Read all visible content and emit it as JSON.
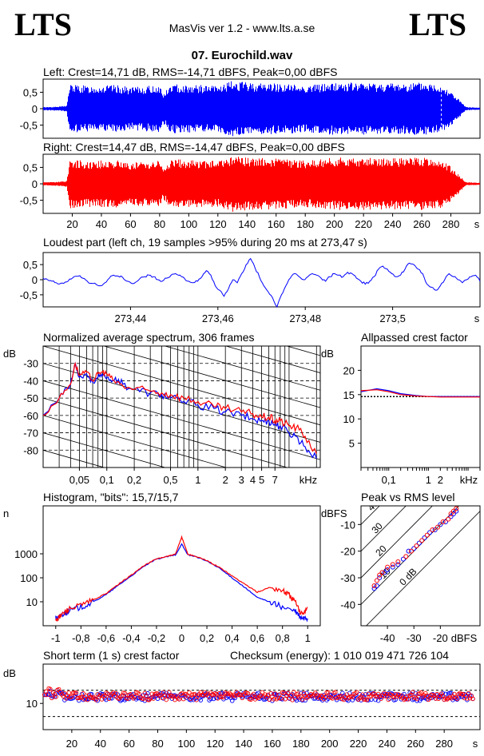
{
  "header": {
    "logo_left": "LTS",
    "logo_right": "LTS",
    "title": "MasVis ver 1.2 - www.lts.a.se",
    "track": "07. Eurochild.wav"
  },
  "colors": {
    "left": "#0000ff",
    "right": "#ff0000",
    "grid": "#000000"
  },
  "chart_data": [
    {
      "id": "left-waveform",
      "type": "area",
      "title": "Left: Crest=14,71 dB, RMS=-14,71 dBFS, Peak=0,00 dBFS",
      "ylim": [
        -0.9,
        0.9
      ],
      "yticks": [
        "0,5",
        "0",
        "-0,5"
      ],
      "xlim": [
        0,
        300
      ],
      "envelope": [
        [
          0,
          0.05
        ],
        [
          10,
          0.06
        ],
        [
          16,
          0.1
        ],
        [
          18,
          0.75
        ],
        [
          30,
          0.7
        ],
        [
          50,
          0.72
        ],
        [
          60,
          0.65
        ],
        [
          80,
          0.72
        ],
        [
          82,
          0.45
        ],
        [
          88,
          0.75
        ],
        [
          120,
          0.7
        ],
        [
          130,
          0.85
        ],
        [
          140,
          0.8
        ],
        [
          160,
          0.78
        ],
        [
          180,
          0.72
        ],
        [
          200,
          0.8
        ],
        [
          240,
          0.78
        ],
        [
          260,
          0.8
        ],
        [
          272,
          0.75
        ],
        [
          278,
          0.6
        ],
        [
          285,
          0.3
        ],
        [
          290,
          0.05
        ],
        [
          300,
          0.03
        ]
      ],
      "series_color": "#0000ff"
    },
    {
      "id": "right-waveform",
      "type": "area",
      "title": "Right: Crest=14,47 dB, RMS=-14,47 dBFS, Peak=0,00 dBFS",
      "ylim": [
        -0.9,
        0.9
      ],
      "yticks": [
        "0,5",
        "0",
        "-0,5"
      ],
      "xlim": [
        0,
        300
      ],
      "xticks": [
        20,
        40,
        60,
        80,
        100,
        120,
        140,
        160,
        180,
        200,
        220,
        240,
        260,
        280
      ],
      "xunit": "s",
      "envelope": [
        [
          0,
          0.05
        ],
        [
          10,
          0.06
        ],
        [
          16,
          0.1
        ],
        [
          18,
          0.75
        ],
        [
          30,
          0.7
        ],
        [
          50,
          0.72
        ],
        [
          60,
          0.65
        ],
        [
          80,
          0.72
        ],
        [
          82,
          0.45
        ],
        [
          88,
          0.75
        ],
        [
          120,
          0.7
        ],
        [
          130,
          0.85
        ],
        [
          140,
          0.8
        ],
        [
          160,
          0.78
        ],
        [
          180,
          0.72
        ],
        [
          200,
          0.8
        ],
        [
          240,
          0.78
        ],
        [
          260,
          0.8
        ],
        [
          272,
          0.75
        ],
        [
          278,
          0.6
        ],
        [
          285,
          0.3
        ],
        [
          290,
          0.05
        ],
        [
          300,
          0.03
        ]
      ],
      "series_color": "#ff0000"
    },
    {
      "id": "loudest-part",
      "type": "line",
      "title": "Loudest part (left  ch, 19 samples >95% during 20 ms at 273,47 s)",
      "ylim": [
        -0.9,
        0.9
      ],
      "yticks": [
        "0,5",
        "0",
        "-0,5"
      ],
      "xlim": [
        273.42,
        273.52
      ],
      "xticks": [
        "273,44",
        "273,46",
        "273,48",
        "273,5"
      ],
      "xtick_values": [
        273.44,
        273.46,
        273.48,
        273.5
      ],
      "xunit": "s",
      "y": [
        0.05,
        0.0,
        -0.05,
        -0.1,
        -0.12,
        -0.08,
        0.02,
        0.1,
        0.12,
        0.05,
        -0.05,
        -0.12,
        -0.15,
        -0.2,
        -0.1,
        0.05,
        0.15,
        0.12,
        0.08,
        -0.05,
        -0.12,
        -0.08,
        0.05,
        0.1,
        0.15,
        0.1,
        0.0,
        -0.05,
        0.05,
        0.15,
        0.2,
        0.15,
        0.05,
        -0.05,
        -0.1,
        -0.05,
        0.1,
        0.3,
        0.15,
        -0.2,
        -0.35,
        -0.55,
        -0.3,
        0.0,
        -0.1,
        0.2,
        0.5,
        0.7,
        0.4,
        0.1,
        -0.2,
        -0.4,
        -0.6,
        -0.9,
        -0.5,
        -0.2,
        0.05,
        0.2,
        0.1,
        0.0,
        0.1,
        0.2,
        0.15,
        0.05,
        -0.05,
        0.1,
        0.2,
        0.15,
        0.1,
        0.25,
        0.2,
        0.05,
        -0.05,
        -0.15,
        -0.05,
        0.1,
        0.35,
        0.45,
        0.35,
        0.2,
        0.1,
        0.15,
        0.35,
        0.55,
        0.5,
        0.35,
        0.2,
        -0.15,
        -0.25,
        -0.35,
        -0.2,
        0.0,
        0.2,
        0.1,
        0.0,
        -0.1,
        0.0,
        0.1,
        0.15,
        -0.05
      ],
      "series_color": "#0000ff"
    },
    {
      "id": "spectrum",
      "type": "line",
      "title": "Normalized average spectrum, 306 frames",
      "ylabel": "dB",
      "xunit": "kHz",
      "ylim": [
        -90,
        -20
      ],
      "yticks": [
        -30,
        -40,
        -50,
        -60,
        -70,
        -80
      ],
      "xlim": [
        0.02,
        22
      ],
      "xtick_labels": [
        "0,05",
        "0,1",
        "0,2",
        "0,5",
        "1",
        "2",
        "3",
        "4",
        "5",
        "7"
      ],
      "xtick_values": [
        0.05,
        0.1,
        0.2,
        0.5,
        1,
        2,
        3,
        4,
        5,
        7
      ],
      "series": [
        {
          "name": "",
          "color": "#0000ff",
          "x": [
            0.02,
            0.03,
            0.04,
            0.045,
            0.05,
            0.06,
            0.07,
            0.08,
            0.09,
            0.1,
            0.12,
            0.15,
            0.2,
            0.3,
            0.4,
            0.5,
            0.7,
            1,
            1.5,
            2,
            3,
            4,
            5,
            6,
            7,
            8,
            10,
            12,
            15,
            20
          ],
          "y": [
            -60,
            -50,
            -42,
            -30,
            -38,
            -36,
            -41,
            -38,
            -37,
            -38,
            -40,
            -42,
            -45,
            -47,
            -48,
            -50,
            -52,
            -54,
            -56,
            -58,
            -60,
            -62,
            -63,
            -63,
            -65,
            -66,
            -70,
            -72,
            -78,
            -85
          ]
        },
        {
          "name": "",
          "color": "#ff0000",
          "x": [
            0.02,
            0.03,
            0.04,
            0.045,
            0.05,
            0.06,
            0.07,
            0.08,
            0.09,
            0.1,
            0.12,
            0.15,
            0.2,
            0.3,
            0.4,
            0.5,
            0.7,
            1,
            1.5,
            2,
            3,
            4,
            5,
            6,
            7,
            8,
            10,
            12,
            15,
            20
          ],
          "y": [
            -60,
            -50,
            -42,
            -30,
            -37,
            -35,
            -40,
            -36,
            -35,
            -36,
            -40,
            -43,
            -45,
            -46,
            -47,
            -48,
            -50,
            -52,
            -55,
            -56,
            -58,
            -59,
            -61,
            -61,
            -63,
            -63,
            -66,
            -67,
            -72,
            -82
          ]
        }
      ]
    },
    {
      "id": "allpassed-crest",
      "type": "line",
      "title": "Allpassed crest factor",
      "ylabel": "dB",
      "xunit": "kHz",
      "ylim": [
        0,
        25
      ],
      "yticks": [
        5,
        10,
        15,
        20
      ],
      "xlim": [
        0.02,
        20
      ],
      "xtick_labels": [
        "0,1",
        "1",
        "2"
      ],
      "xtick_values": [
        0.1,
        1,
        2
      ],
      "reference": 14.6,
      "series": [
        {
          "name": "",
          "color": "#0000ff",
          "x": [
            0.02,
            0.05,
            0.1,
            0.2,
            0.5,
            1,
            2,
            5,
            10,
            20
          ],
          "y": [
            15.6,
            16.2,
            15.8,
            15.2,
            14.8,
            14.6,
            14.6,
            14.6,
            14.6,
            14.6
          ]
        },
        {
          "name": "",
          "color": "#ff0000",
          "x": [
            0.02,
            0.05,
            0.1,
            0.2,
            0.5,
            1,
            2,
            5,
            10,
            20
          ],
          "y": [
            15.8,
            16.0,
            15.6,
            15.0,
            14.7,
            14.6,
            14.5,
            14.5,
            14.5,
            14.5
          ]
        }
      ]
    },
    {
      "id": "histogram",
      "type": "line",
      "title": "Histogram, \"bits\": 15,7/15,7",
      "ylabel": "n",
      "ylim": [
        1,
        100000
      ],
      "yticks": [
        10,
        100,
        1000
      ],
      "xlim": [
        -1.1,
        1.1
      ],
      "xtick_values": [
        -1,
        -0.8,
        -0.6,
        -0.4,
        -0.2,
        0,
        0.2,
        0.4,
        0.6,
        0.8,
        1
      ],
      "xtick_labels": [
        "-1",
        "-0,8",
        "-0,6",
        "-0,4",
        "-0,2",
        "0",
        "0,2",
        "0,4",
        "0,6",
        "0,8",
        "1"
      ],
      "series": [
        {
          "name": "",
          "color": "#0000ff",
          "x": [
            -1,
            -0.98,
            -0.95,
            -0.9,
            -0.8,
            -0.7,
            -0.6,
            -0.5,
            -0.4,
            -0.3,
            -0.2,
            -0.1,
            -0.05,
            0,
            0.05,
            0.1,
            0.2,
            0.3,
            0.4,
            0.5,
            0.6,
            0.7,
            0.8,
            0.9,
            0.95,
            1
          ],
          "y": [
            2,
            2,
            3,
            4,
            6,
            10,
            20,
            50,
            120,
            300,
            600,
            800,
            900,
            2500,
            900,
            800,
            500,
            250,
            100,
            40,
            15,
            10,
            6,
            4,
            2,
            2
          ]
        },
        {
          "name": "",
          "color": "#ff0000",
          "x": [
            -1,
            -0.98,
            -0.95,
            -0.9,
            -0.8,
            -0.7,
            -0.6,
            -0.5,
            -0.4,
            -0.3,
            -0.2,
            -0.1,
            -0.05,
            0,
            0.05,
            0.1,
            0.2,
            0.3,
            0.4,
            0.5,
            0.6,
            0.7,
            0.8,
            0.85,
            0.9,
            0.95,
            1
          ],
          "y": [
            2,
            2,
            3,
            5,
            7,
            12,
            22,
            55,
            130,
            320,
            620,
            820,
            950,
            5000,
            950,
            820,
            520,
            270,
            120,
            55,
            25,
            40,
            30,
            20,
            10,
            3,
            6
          ]
        }
      ]
    },
    {
      "id": "peak-vs-rms",
      "type": "scatter",
      "title": "Peak vs RMS level",
      "ylabel": "dBFS",
      "xunit": "dBFS",
      "xlim": [
        -50,
        -5
      ],
      "ylim": [
        -48,
        -3
      ],
      "xticks": [
        -40,
        -30,
        -20
      ],
      "yticks": [
        -10,
        -20,
        -30,
        -40
      ],
      "crest_lines": [
        0,
        10,
        20,
        30,
        40
      ],
      "crest_labels": [
        "0 dB",
        "10",
        "20",
        "30",
        "40"
      ],
      "series": [
        {
          "name": "",
          "color": "#0000ff",
          "points": [
            [
              -45,
              -34
            ],
            [
              -44,
              -33
            ],
            [
              -43,
              -30
            ],
            [
              -41,
              -28
            ],
            [
              -40,
              -27
            ],
            [
              -38,
              -26
            ],
            [
              -36,
              -25
            ],
            [
              -34,
              -23
            ],
            [
              -32,
              -20
            ],
            [
              -30,
              -19
            ],
            [
              -28,
              -17
            ],
            [
              -26,
              -15
            ],
            [
              -24,
              -13
            ],
            [
              -22,
              -12
            ],
            [
              -20,
              -10
            ],
            [
              -18,
              -9
            ],
            [
              -16,
              -7
            ],
            [
              -15,
              -6
            ],
            [
              -14,
              -5
            ]
          ]
        },
        {
          "name": "",
          "color": "#ff0000",
          "points": [
            [
              -45,
              -33
            ],
            [
              -44,
              -31
            ],
            [
              -43,
              -29
            ],
            [
              -42,
              -28
            ],
            [
              -40,
              -26
            ],
            [
              -38,
              -25
            ],
            [
              -36,
              -24
            ],
            [
              -33,
              -22
            ],
            [
              -31,
              -20
            ],
            [
              -29,
              -18
            ],
            [
              -27,
              -16
            ],
            [
              -25,
              -14
            ],
            [
              -23,
              -12
            ],
            [
              -21,
              -11
            ],
            [
              -19,
              -9
            ],
            [
              -17,
              -8
            ],
            [
              -16,
              -6
            ],
            [
              -15,
              -5
            ],
            [
              -14,
              -4
            ]
          ]
        }
      ]
    },
    {
      "id": "short-term-crest",
      "type": "scatter",
      "title": "Short term (1 s) crest factor",
      "checksum": "Checksum (energy):  1 010 019 471 726 104",
      "ylabel": "dB",
      "xunit": "s",
      "xlim": [
        0,
        305
      ],
      "ylim": [
        0,
        25
      ],
      "yticks": [
        10
      ],
      "dashed": [
        5,
        15
      ],
      "xticks": [
        20,
        40,
        60,
        80,
        100,
        120,
        140,
        160,
        180,
        200,
        220,
        240,
        260,
        280
      ],
      "seed_base": 13,
      "series": [
        {
          "name": "",
          "color": "#0000ff",
          "base": 12.5
        },
        {
          "name": "",
          "color": "#ff0000",
          "base": 12.8
        }
      ]
    }
  ]
}
